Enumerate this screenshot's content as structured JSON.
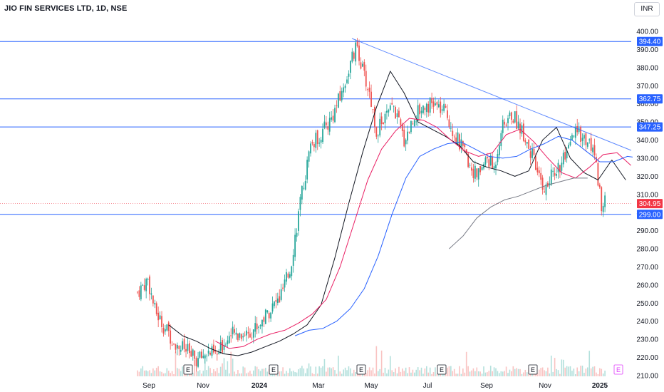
{
  "header": {
    "title": "JIO FIN SERVICES LTD, 1D, NSE",
    "currency": "INR"
  },
  "colors": {
    "up": "#26a69a",
    "down": "#ef5350",
    "hline": "#2962ff",
    "trendline": "#2962ff",
    "ma_black": "#131722",
    "ma_red": "#e91e63",
    "ma_blue": "#2962ff",
    "ma_gray": "#787b86",
    "price_tag": "#f23645",
    "level_tag": "#2962ff",
    "earnings_marker": "#131722",
    "dividend_marker": "#e040fb"
  },
  "chart_data": {
    "type": "candlestick",
    "symbol": "JIO FIN SERVICES LTD",
    "interval": "1D",
    "exchange": "NSE",
    "y_axis": {
      "ticks": [
        210,
        220,
        230,
        240,
        250,
        260,
        270,
        280,
        290,
        300,
        310,
        320,
        330,
        340,
        350,
        360,
        370,
        380,
        390,
        400
      ],
      "range": [
        208,
        402
      ]
    },
    "x_axis": {
      "tick_labels": [
        "Sep",
        "Nov",
        "2024",
        "Mar",
        "May",
        "Jul",
        "Sep",
        "Nov",
        "2025"
      ]
    },
    "horizontal_levels": [
      394.4,
      362.75,
      347.25,
      299.0
    ],
    "current_price": 304.95,
    "trendline": {
      "from": {
        "date": "Apr 2024",
        "price": 394.4
      },
      "to": {
        "date": "Jan 2025",
        "price": 331.5
      }
    },
    "price_path": [
      [
        0,
        256
      ],
      [
        6,
        263
      ],
      [
        10,
        246
      ],
      [
        16,
        236
      ],
      [
        22,
        228
      ],
      [
        28,
        224
      ],
      [
        34,
        218
      ],
      [
        40,
        223
      ],
      [
        46,
        221
      ],
      [
        52,
        232
      ],
      [
        58,
        233
      ],
      [
        64,
        234
      ],
      [
        70,
        238
      ],
      [
        76,
        246
      ],
      [
        82,
        252
      ],
      [
        88,
        268
      ],
      [
        94,
        305
      ],
      [
        100,
        337
      ],
      [
        106,
        343
      ],
      [
        112,
        352
      ],
      [
        118,
        366
      ],
      [
        124,
        385
      ],
      [
        127,
        392
      ],
      [
        130,
        378
      ],
      [
        134,
        366
      ],
      [
        138,
        345
      ],
      [
        142,
        351
      ],
      [
        148,
        358
      ],
      [
        154,
        340
      ],
      [
        160,
        353
      ],
      [
        166,
        360
      ],
      [
        172,
        359
      ],
      [
        178,
        355
      ],
      [
        184,
        342
      ],
      [
        190,
        330
      ],
      [
        196,
        320
      ],
      [
        202,
        330
      ],
      [
        206,
        324
      ],
      [
        210,
        346
      ],
      [
        216,
        354
      ],
      [
        220,
        349
      ],
      [
        224,
        342
      ],
      [
        228,
        331
      ],
      [
        232,
        318
      ],
      [
        236,
        313
      ],
      [
        240,
        322
      ],
      [
        244,
        326
      ],
      [
        248,
        331
      ],
      [
        252,
        343
      ],
      [
        256,
        343
      ],
      [
        260,
        339
      ],
      [
        264,
        333
      ],
      [
        268,
        305
      ],
      [
        270,
        305
      ]
    ],
    "moving_averages": [
      {
        "color": "#131722",
        "start_day": 18,
        "values": [
          238,
          232,
          229,
          225,
          222,
          221,
          223,
          226,
          229,
          233,
          238,
          249,
          275,
          305,
          333,
          358,
          378,
          366,
          350,
          346,
          342,
          337,
          328,
          325,
          323,
          320,
          323,
          340,
          347,
          330,
          322,
          318,
          329,
          318
        ]
      },
      {
        "color": "#e91e63",
        "start_day": 45,
        "values": [
          229,
          225,
          226,
          230,
          233,
          235,
          239,
          244,
          252,
          270,
          294,
          318,
          335,
          345,
          352,
          351,
          347,
          340,
          334,
          331,
          333,
          343,
          346,
          339,
          330,
          322,
          319,
          325,
          332,
          333,
          326
        ]
      },
      {
        "color": "#2962ff",
        "start_day": 91,
        "values": [
          232,
          235,
          236,
          240,
          247,
          258,
          276,
          299,
          319,
          331,
          335,
          338,
          339,
          335,
          331,
          330,
          331,
          335,
          338,
          342,
          340,
          334,
          328,
          328,
          331,
          330
        ]
      },
      {
        "color": "#787b86",
        "start_day": 180,
        "values": [
          280,
          287,
          297,
          303,
          307,
          309,
          312,
          315,
          317,
          319,
          319
        ]
      }
    ],
    "volume": {
      "note": "volume histogram shown at bottom"
    },
    "event_markers": [
      {
        "label": "E",
        "date": "Oct 2023"
      },
      {
        "label": "E",
        "date": "Jan 2024"
      },
      {
        "label": "E",
        "date": "Apr 2024"
      },
      {
        "label": "E",
        "date": "Jul 2024"
      },
      {
        "label": "E",
        "date": "Oct 2024"
      },
      {
        "label": "E",
        "date": "Jan 2025"
      }
    ]
  }
}
